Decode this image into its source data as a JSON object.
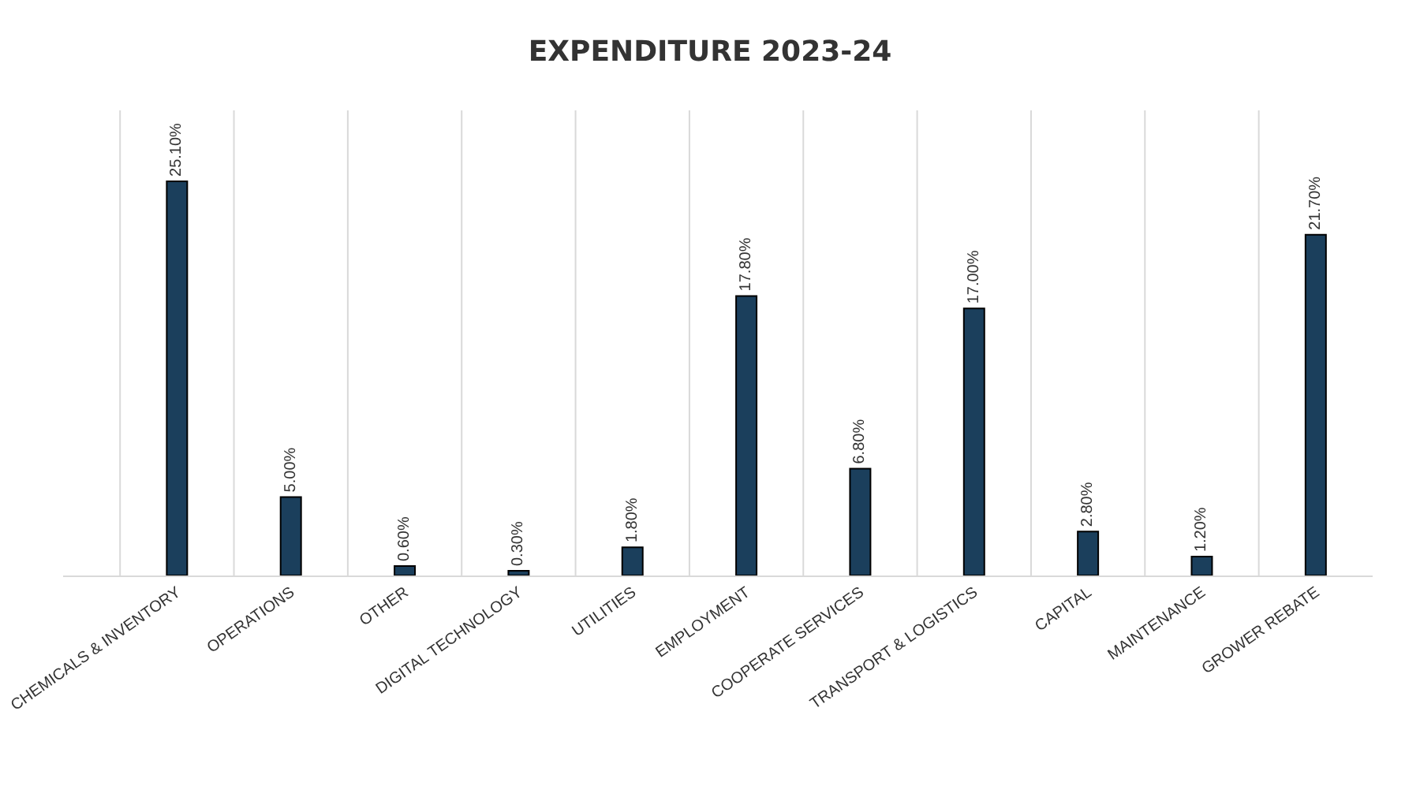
{
  "chart_data": {
    "type": "bar",
    "title": "EXPENDITURE 2023-24",
    "categories": [
      "CHEMICALS & INVENTORY",
      "OPERATIONS",
      "OTHER",
      "DIGITAL TECHNOLOGY",
      "UTILITIES",
      "EMPLOYMENT",
      "COOPERATE SERVICES",
      "TRANSPORT & LOGISTICS",
      "CAPITAL",
      "MAINTENANCE",
      "GROWER REBATE"
    ],
    "values": [
      25.1,
      5.0,
      0.6,
      0.3,
      1.8,
      17.8,
      6.8,
      17.0,
      2.8,
      1.2,
      21.7
    ],
    "value_labels": [
      "25.10%",
      "5.00%",
      "0.60%",
      "0.30%",
      "1.80%",
      "17.80%",
      "6.80%",
      "17.00%",
      "2.80%",
      "1.20%",
      "21.70%"
    ],
    "color": "#1b3f5c",
    "tick_labels": "x",
    "legend": false
  }
}
